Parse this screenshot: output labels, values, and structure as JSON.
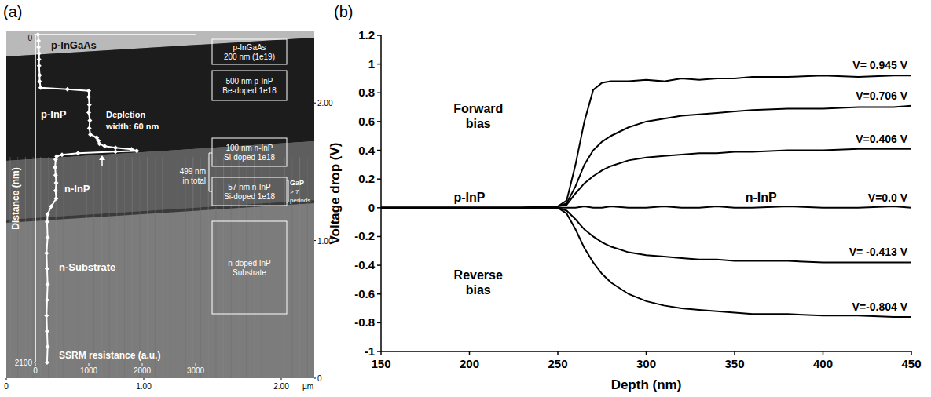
{
  "panel_a": {
    "label": "(a)",
    "image_axes": {
      "xlim": [
        0,
        2.24
      ],
      "ylim": [
        0,
        2.52
      ],
      "xticks": [
        0,
        {
          "value": 1,
          "label": "1.00"
        },
        {
          "value": 2,
          "label": "2.00"
        }
      ],
      "yticks": [
        0,
        {
          "value": 1,
          "label": "1.00"
        },
        {
          "value": 2,
          "label": "2.00"
        }
      ],
      "unit": "µm"
    },
    "profile": {
      "type": "line",
      "marker": "diamond",
      "color": "#ffffff",
      "y_label": "Distance (nm)",
      "x_label": "SSRM resistance (a.u.)",
      "ylim": [
        0,
        2100
      ],
      "yticks": [
        0,
        2100
      ],
      "xlim": [
        0,
        3000
      ],
      "xticks": [
        0,
        1000,
        2000,
        3000
      ],
      "distance": [
        0,
        40,
        80,
        120,
        160,
        200,
        260,
        300,
        340,
        350,
        360,
        400,
        450,
        500,
        550,
        600,
        640,
        660,
        680,
        700,
        715,
        725,
        735,
        745,
        750,
        760,
        770,
        780,
        800,
        850,
        900,
        950,
        1000,
        1050,
        1100,
        1150,
        1200,
        1300,
        1400,
        1500,
        1600,
        1700,
        1800,
        1900,
        2000,
        2100
      ],
      "resistance": [
        50,
        60,
        60,
        70,
        70,
        70,
        80,
        80,
        100,
        600,
        1000,
        1000,
        1010,
        1000,
        1020,
        1010,
        1030,
        1150,
        1180,
        1200,
        1300,
        1500,
        1800,
        1900,
        1500,
        800,
        500,
        400,
        380,
        370,
        380,
        390,
        380,
        390,
        300,
        230,
        220,
        230,
        210,
        220,
        230,
        220,
        210,
        220,
        230,
        220
      ]
    },
    "region_labels": [
      "p-InGaAs",
      "p-InP",
      "n-InP",
      "n-Substrate"
    ],
    "depletion_label": [
      "Depletion",
      "width: 60 nm"
    ],
    "layer_boxes": [
      [
        "p-InGaAs",
        "200 nm (1e19)"
      ],
      [
        "500 nm p-InP",
        "Be-doped 1e18"
      ],
      [
        "100 nm n-InP",
        "Si-doped 1e18"
      ],
      [
        "57 nm n-InP",
        "Si-doped 1e18"
      ],
      [
        "n-doped InP",
        "Substrate"
      ]
    ],
    "total_label": [
      "499 nm",
      "in total"
    ],
    "period_labels": [
      "GaP",
      "> 7",
      "periods"
    ]
  },
  "chart_data": {
    "type": "line",
    "label": "(b)",
    "x_label": "Depth (nm)",
    "y_label": "Voltage drop (V)",
    "xlim": [
      150,
      450
    ],
    "xticks": [
      150,
      200,
      250,
      300,
      350,
      400,
      450
    ],
    "ylim": [
      -1,
      1.2
    ],
    "yticks": [
      -1,
      -0.8,
      -0.6,
      -0.4,
      -0.2,
      0,
      0.2,
      0.4,
      0.6,
      0.8,
      1,
      1.2
    ],
    "grid": false,
    "x": [
      150,
      170,
      190,
      210,
      230,
      250,
      255,
      260,
      265,
      270,
      275,
      280,
      290,
      300,
      310,
      320,
      330,
      340,
      350,
      360,
      380,
      400,
      420,
      440,
      450
    ],
    "series": [
      {
        "name": "V= 0.945 V",
        "color": "#000000",
        "values": [
          0,
          0,
          0,
          0,
          0,
          0.01,
          0.05,
          0.3,
          0.6,
          0.82,
          0.87,
          0.88,
          0.88,
          0.89,
          0.88,
          0.9,
          0.89,
          0.9,
          0.9,
          0.91,
          0.91,
          0.92,
          0.91,
          0.92,
          0.92
        ]
      },
      {
        "name": "V=0.706 V",
        "color": "#000000",
        "values": [
          0,
          0,
          0,
          0,
          0,
          0.01,
          0.03,
          0.15,
          0.3,
          0.4,
          0.46,
          0.5,
          0.56,
          0.6,
          0.62,
          0.64,
          0.65,
          0.66,
          0.67,
          0.68,
          0.69,
          0.69,
          0.7,
          0.7,
          0.71
        ]
      },
      {
        "name": "V=0.406 V",
        "color": "#000000",
        "values": [
          0,
          0,
          0,
          0,
          0,
          0.01,
          0.02,
          0.1,
          0.17,
          0.22,
          0.26,
          0.29,
          0.33,
          0.35,
          0.36,
          0.37,
          0.38,
          0.38,
          0.39,
          0.39,
          0.4,
          0.4,
          0.41,
          0.41,
          0.41
        ]
      },
      {
        "name": "V=0.0 V",
        "color": "#000000",
        "values": [
          0,
          0,
          0,
          0,
          0,
          0,
          0,
          0,
          0.01,
          0,
          0,
          0.01,
          0,
          0,
          0.01,
          0,
          0,
          0.01,
          0,
          0,
          0.01,
          0,
          0,
          0.01,
          0
        ]
      },
      {
        "name": "V= -0.413 V",
        "color": "#000000",
        "values": [
          0,
          0,
          0,
          0,
          0,
          0,
          -0.02,
          -0.08,
          -0.15,
          -0.2,
          -0.24,
          -0.27,
          -0.31,
          -0.33,
          -0.34,
          -0.35,
          -0.36,
          -0.36,
          -0.37,
          -0.37,
          -0.37,
          -0.38,
          -0.38,
          -0.38,
          -0.38
        ]
      },
      {
        "name": "V=-0.804 V",
        "color": "#000000",
        "values": [
          0,
          0,
          0,
          0,
          0,
          0,
          -0.04,
          -0.15,
          -0.28,
          -0.38,
          -0.46,
          -0.52,
          -0.6,
          -0.65,
          -0.68,
          -0.7,
          -0.71,
          -0.72,
          -0.73,
          -0.74,
          -0.74,
          -0.75,
          -0.75,
          -0.76,
          -0.76
        ]
      }
    ],
    "annotations": [
      "Forward bias",
      "Reverse bias",
      "p-InP",
      "n-InP"
    ]
  }
}
